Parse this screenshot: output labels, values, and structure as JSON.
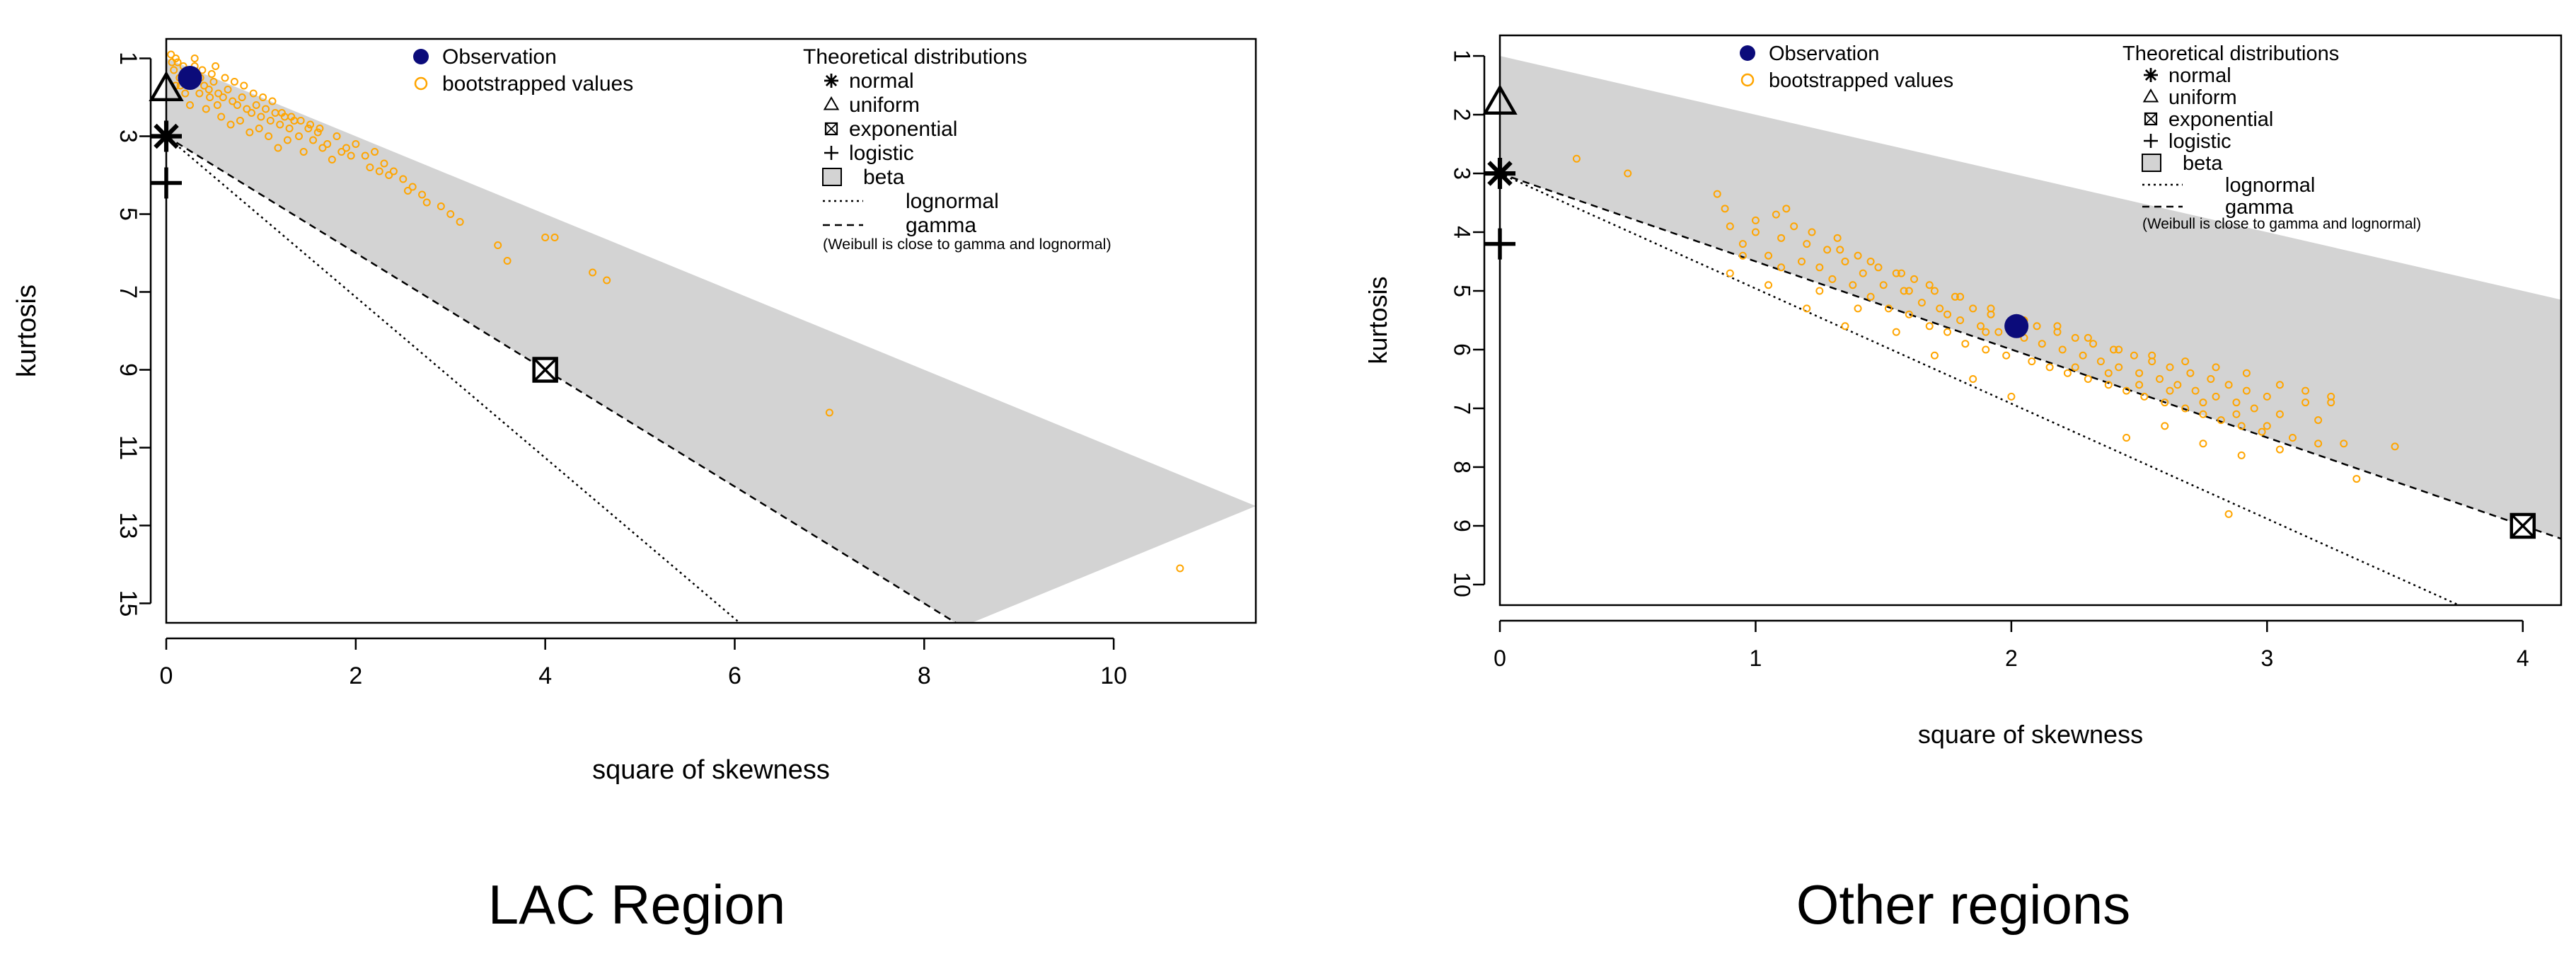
{
  "chart_data": [
    {
      "type": "scatter",
      "title": "",
      "caption": "LAC Region",
      "xlabel": "square of skewness",
      "ylabel": "kurtosis",
      "xlim": [
        0,
        11.5
      ],
      "ylim": [
        15.5,
        0.5
      ],
      "x_ticks": [
        "0",
        "2",
        "4",
        "6",
        "8",
        "10"
      ],
      "y_ticks": [
        "1",
        "3",
        "5",
        "7",
        "9",
        "11",
        "13",
        "15"
      ],
      "observation": {
        "x": 0.25,
        "y": 1.5
      },
      "theoretical_points": {
        "normal": {
          "x": 0,
          "y": 3
        },
        "uniform": {
          "x": 0,
          "y": 1.8
        },
        "exponential": {
          "x": 4,
          "y": 9
        },
        "logistic": {
          "x": 0,
          "y": 4.2
        }
      },
      "lines": {
        "gamma": [
          [
            0,
            3
          ],
          [
            8.4,
            15.6
          ]
        ],
        "lognormal": [
          [
            0,
            3
          ],
          [
            6.1,
            15.6
          ]
        ]
      },
      "beta_region": {
        "upper": [
          [
            0,
            1
          ],
          [
            11.5,
            12.5
          ]
        ],
        "lower": [
          [
            0,
            3
          ],
          [
            8.4,
            15.6
          ]
        ]
      },
      "bootstrapped": [
        [
          0.05,
          0.9
        ],
        [
          0.1,
          1.0
        ],
        [
          0.12,
          1.1
        ],
        [
          0.18,
          1.2
        ],
        [
          0.22,
          1.3
        ],
        [
          0.28,
          1.4
        ],
        [
          0.32,
          1.6
        ],
        [
          0.4,
          1.7
        ],
        [
          0.45,
          1.8
        ],
        [
          0.5,
          1.6
        ],
        [
          0.55,
          1.9
        ],
        [
          0.6,
          2.0
        ],
        [
          0.65,
          1.8
        ],
        [
          0.7,
          2.1
        ],
        [
          0.75,
          2.2
        ],
        [
          0.8,
          2.0
        ],
        [
          0.85,
          2.3
        ],
        [
          0.9,
          2.4
        ],
        [
          0.95,
          2.2
        ],
        [
          1.0,
          2.5
        ],
        [
          1.05,
          2.3
        ],
        [
          1.1,
          2.6
        ],
        [
          1.15,
          2.4
        ],
        [
          1.2,
          2.7
        ],
        [
          1.25,
          2.5
        ],
        [
          1.3,
          2.8
        ],
        [
          1.35,
          2.6
        ],
        [
          1.4,
          3.0
        ],
        [
          1.5,
          2.8
        ],
        [
          1.55,
          3.1
        ],
        [
          1.6,
          2.9
        ],
        [
          1.7,
          3.2
        ],
        [
          1.8,
          3.0
        ],
        [
          1.9,
          3.3
        ],
        [
          2.0,
          3.2
        ],
        [
          2.1,
          3.5
        ],
        [
          2.2,
          3.4
        ],
        [
          2.3,
          3.7
        ],
        [
          2.4,
          3.9
        ],
        [
          2.5,
          4.1
        ],
        [
          2.6,
          4.3
        ],
        [
          2.7,
          4.5
        ],
        [
          2.9,
          4.8
        ],
        [
          3.0,
          5.0
        ],
        [
          3.1,
          5.2
        ],
        [
          3.5,
          5.8
        ],
        [
          3.6,
          6.2
        ],
        [
          4.0,
          5.6
        ],
        [
          4.1,
          5.6
        ],
        [
          4.5,
          6.5
        ],
        [
          4.65,
          6.7
        ],
        [
          7.0,
          10.1
        ],
        [
          10.7,
          14.1
        ],
        [
          0.2,
          1.5
        ],
        [
          0.3,
          1.2
        ],
        [
          0.35,
          1.9
        ],
        [
          0.25,
          2.2
        ],
        [
          0.15,
          1.7
        ],
        [
          0.42,
          2.3
        ],
        [
          0.58,
          2.5
        ],
        [
          0.68,
          2.7
        ],
        [
          0.78,
          2.6
        ],
        [
          0.88,
          2.9
        ],
        [
          0.98,
          2.8
        ],
        [
          1.08,
          3.0
        ],
        [
          1.18,
          3.3
        ],
        [
          1.28,
          3.1
        ],
        [
          1.45,
          3.4
        ],
        [
          1.65,
          3.3
        ],
        [
          1.75,
          3.6
        ],
        [
          0.3,
          1.0
        ],
        [
          0.38,
          1.3
        ],
        [
          0.48,
          1.4
        ],
        [
          0.52,
          1.2
        ],
        [
          0.62,
          1.5
        ],
        [
          0.72,
          1.6
        ],
        [
          0.82,
          1.7
        ],
        [
          0.92,
          1.9
        ],
        [
          1.02,
          2.0
        ],
        [
          1.12,
          2.1
        ],
        [
          0.08,
          1.3
        ],
        [
          0.14,
          1.5
        ],
        [
          0.2,
          1.9
        ],
        [
          0.1,
          1.7
        ],
        [
          0.06,
          1.1
        ],
        [
          0.36,
          1.5
        ],
        [
          0.46,
          2.0
        ],
        [
          0.54,
          2.2
        ],
        [
          1.22,
          2.4
        ],
        [
          1.32,
          2.5
        ],
        [
          1.42,
          2.6
        ],
        [
          1.52,
          2.7
        ],
        [
          1.62,
          2.8
        ],
        [
          1.85,
          3.4
        ],
        [
          1.95,
          3.5
        ],
        [
          2.15,
          3.8
        ],
        [
          2.25,
          3.9
        ],
        [
          2.35,
          4.0
        ],
        [
          2.55,
          4.4
        ],
        [
          2.75,
          4.7
        ]
      ],
      "legend": {
        "observation": "Observation",
        "bootstrapped": "bootstrapped values",
        "theoretical_title": "Theoretical distributions",
        "normal": "normal",
        "uniform": "uniform",
        "exponential": "exponential",
        "logistic": "logistic",
        "beta": "beta",
        "lognormal": "lognormal",
        "gamma": "gamma",
        "note": "(Weibull is close to gamma and lognormal)"
      }
    },
    {
      "type": "scatter",
      "title": "",
      "caption": "Other regions",
      "xlabel": "square of skewness",
      "ylabel": "kurtosis",
      "xlim": [
        0,
        4.15
      ],
      "ylim": [
        10.35,
        0.65
      ],
      "x_ticks": [
        "0",
        "1",
        "2",
        "3",
        "4"
      ],
      "y_ticks": [
        "1",
        "2",
        "3",
        "4",
        "5",
        "6",
        "7",
        "8",
        "9",
        "10"
      ],
      "observation": {
        "x": 2.02,
        "y": 5.6
      },
      "theoretical_points": {
        "normal": {
          "x": 0,
          "y": 3
        },
        "uniform": {
          "x": 0,
          "y": 1.8
        },
        "exponential": {
          "x": 4,
          "y": 9
        },
        "logistic": {
          "x": 0,
          "y": 4.2
        }
      },
      "lines": {
        "gamma": [
          [
            0,
            3
          ],
          [
            4.15,
            9.22
          ]
        ],
        "lognormal": [
          [
            0,
            3
          ],
          [
            3.75,
            10.35
          ]
        ]
      },
      "beta_region": {
        "upper": [
          [
            0,
            1
          ],
          [
            4.15,
            5.15
          ]
        ],
        "lower": [
          [
            0,
            3
          ],
          [
            4.15,
            9.22
          ]
        ]
      },
      "bootstrapped": [
        [
          0.3,
          2.75
        ],
        [
          0.5,
          3.0
        ],
        [
          0.85,
          3.35
        ],
        [
          0.88,
          3.6
        ],
        [
          0.9,
          3.9
        ],
        [
          0.95,
          4.2
        ],
        [
          1.0,
          4.0
        ],
        [
          1.05,
          4.4
        ],
        [
          1.08,
          3.7
        ],
        [
          1.1,
          4.1
        ],
        [
          1.15,
          3.9
        ],
        [
          1.18,
          4.5
        ],
        [
          1.2,
          4.2
        ],
        [
          1.25,
          4.6
        ],
        [
          1.28,
          4.3
        ],
        [
          1.3,
          4.8
        ],
        [
          1.32,
          4.1
        ],
        [
          1.35,
          4.5
        ],
        [
          1.38,
          4.9
        ],
        [
          1.4,
          4.4
        ],
        [
          1.42,
          4.7
        ],
        [
          1.45,
          5.1
        ],
        [
          1.48,
          4.6
        ],
        [
          1.5,
          4.9
        ],
        [
          1.52,
          5.3
        ],
        [
          1.55,
          4.7
        ],
        [
          1.58,
          5.0
        ],
        [
          1.6,
          5.4
        ],
        [
          1.62,
          4.8
        ],
        [
          1.65,
          5.2
        ],
        [
          1.68,
          5.6
        ],
        [
          1.7,
          5.0
        ],
        [
          1.72,
          5.3
        ],
        [
          1.75,
          5.7
        ],
        [
          1.78,
          5.1
        ],
        [
          1.8,
          5.5
        ],
        [
          1.82,
          5.9
        ],
        [
          1.85,
          5.3
        ],
        [
          1.88,
          5.6
        ],
        [
          1.9,
          6.0
        ],
        [
          1.92,
          5.4
        ],
        [
          1.95,
          5.7
        ],
        [
          1.98,
          6.1
        ],
        [
          2.0,
          5.5
        ],
        [
          2.05,
          5.8
        ],
        [
          2.08,
          6.2
        ],
        [
          2.1,
          5.6
        ],
        [
          2.12,
          5.9
        ],
        [
          2.15,
          6.3
        ],
        [
          2.18,
          5.7
        ],
        [
          2.2,
          6.0
        ],
        [
          2.22,
          6.4
        ],
        [
          2.25,
          5.8
        ],
        [
          2.28,
          6.1
        ],
        [
          2.3,
          6.5
        ],
        [
          2.32,
          5.9
        ],
        [
          2.35,
          6.2
        ],
        [
          2.38,
          6.6
        ],
        [
          2.4,
          6.0
        ],
        [
          2.42,
          6.3
        ],
        [
          2.45,
          6.7
        ],
        [
          2.48,
          6.1
        ],
        [
          2.5,
          6.4
        ],
        [
          2.52,
          6.8
        ],
        [
          2.55,
          6.2
        ],
        [
          2.58,
          6.5
        ],
        [
          2.6,
          6.9
        ],
        [
          2.62,
          6.3
        ],
        [
          2.65,
          6.6
        ],
        [
          2.68,
          7.0
        ],
        [
          2.7,
          6.4
        ],
        [
          2.72,
          6.7
        ],
        [
          2.75,
          7.1
        ],
        [
          2.78,
          6.5
        ],
        [
          2.8,
          6.8
        ],
        [
          2.82,
          7.2
        ],
        [
          2.85,
          6.6
        ],
        [
          2.88,
          6.9
        ],
        [
          2.9,
          7.3
        ],
        [
          2.92,
          6.7
        ],
        [
          2.95,
          7.0
        ],
        [
          2.98,
          7.4
        ],
        [
          3.0,
          6.8
        ],
        [
          3.05,
          7.1
        ],
        [
          3.1,
          7.5
        ],
        [
          3.15,
          6.9
        ],
        [
          3.2,
          7.2
        ],
        [
          3.25,
          6.8
        ],
        [
          3.3,
          7.6
        ],
        [
          3.35,
          8.2
        ],
        [
          3.5,
          7.65
        ],
        [
          2.85,
          8.8
        ],
        [
          2.0,
          6.8
        ],
        [
          1.85,
          6.5
        ],
        [
          1.7,
          6.1
        ],
        [
          1.55,
          5.7
        ],
        [
          1.4,
          5.3
        ],
        [
          1.25,
          5.0
        ],
        [
          1.1,
          4.6
        ],
        [
          0.95,
          4.4
        ],
        [
          2.45,
          7.5
        ],
        [
          2.6,
          7.3
        ],
        [
          2.75,
          7.6
        ],
        [
          2.9,
          7.8
        ],
        [
          3.05,
          7.7
        ],
        [
          3.2,
          7.6
        ],
        [
          1.0,
          3.8
        ],
        [
          1.12,
          3.6
        ],
        [
          1.22,
          4.0
        ],
        [
          1.33,
          4.3
        ],
        [
          1.45,
          4.5
        ],
        [
          1.57,
          4.7
        ],
        [
          1.68,
          4.9
        ],
        [
          1.8,
          5.1
        ],
        [
          1.92,
          5.3
        ],
        [
          2.05,
          5.5
        ],
        [
          2.18,
          5.6
        ],
        [
          2.3,
          5.8
        ],
        [
          2.42,
          6.0
        ],
        [
          2.55,
          6.1
        ],
        [
          2.68,
          6.2
        ],
        [
          2.8,
          6.3
        ],
        [
          2.92,
          6.4
        ],
        [
          3.05,
          6.6
        ],
        [
          3.15,
          6.7
        ],
        [
          3.25,
          6.9
        ],
        [
          1.6,
          5.0
        ],
        [
          1.75,
          5.4
        ],
        [
          1.9,
          5.7
        ],
        [
          2.25,
          6.3
        ],
        [
          2.38,
          6.4
        ],
        [
          2.5,
          6.6
        ],
        [
          2.62,
          6.7
        ],
        [
          2.75,
          6.9
        ],
        [
          2.88,
          7.1
        ],
        [
          3.0,
          7.3
        ],
        [
          0.9,
          4.7
        ],
        [
          1.05,
          4.9
        ],
        [
          1.2,
          5.3
        ],
        [
          1.35,
          5.6
        ]
      ],
      "legend": {
        "observation": "Observation",
        "bootstrapped": "bootstrapped values",
        "theoretical_title": "Theoretical distributions",
        "normal": "normal",
        "uniform": "uniform",
        "exponential": "exponential",
        "logistic": "logistic",
        "beta": "beta",
        "lognormal": "lognormal",
        "gamma": "gamma",
        "note": "(Weibull is close to gamma and lognormal)"
      }
    }
  ],
  "colors": {
    "observation": "#0b0b7a",
    "bootstrapped": "#ffa500",
    "beta_region": "#d3d3d3",
    "axis": "#000000"
  }
}
